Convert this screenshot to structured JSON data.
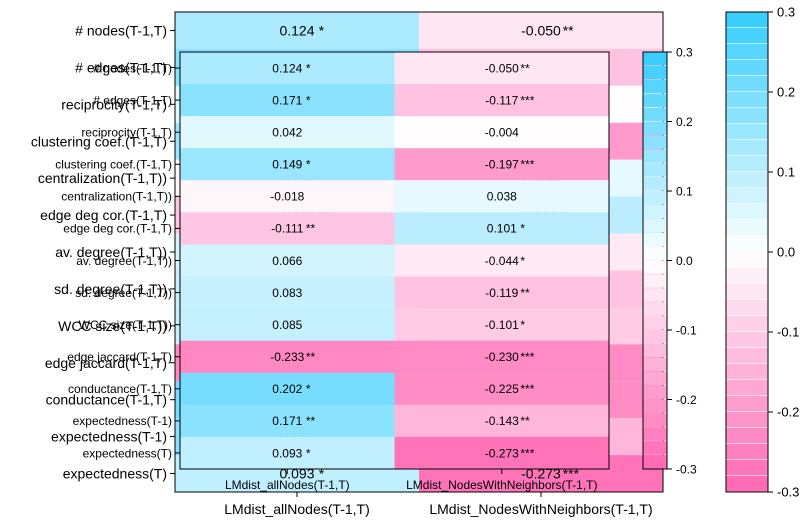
{
  "chart_data": {
    "type": "heatmap",
    "title": "",
    "columns": [
      "LMdist_allNodes(T-1,T)",
      "LMdist_NodesWithNeighbors(T-1,T)"
    ],
    "rows": [
      "# nodes(T-1,T)",
      "# edges(T-1,T)",
      "reciprocity(T-1,T)",
      "clustering coef.(T-1,T)",
      "centralization(T-1,T))",
      "edge deg cor.(T-1,T)",
      "av. degree(T-1,T))",
      "sd. degree(T-1,T))",
      "WCC size(T-1,T))",
      "edge jaccard(T-1,T)",
      "conductance(T-1,T)",
      "expectedness(T-1)",
      "expectedness(T)"
    ],
    "values": [
      [
        0.124,
        -0.05
      ],
      [
        0.171,
        -0.117
      ],
      [
        0.042,
        -0.004
      ],
      [
        0.149,
        -0.197
      ],
      [
        -0.018,
        0.038
      ],
      [
        -0.111,
        0.101
      ],
      [
        0.066,
        -0.044
      ],
      [
        0.083,
        -0.119
      ],
      [
        0.085,
        -0.101
      ],
      [
        -0.233,
        -0.23
      ],
      [
        0.202,
        -0.225
      ],
      [
        0.171,
        -0.143
      ],
      [
        0.093,
        -0.273
      ]
    ],
    "value_labels": [
      [
        "0.124",
        "-0.050"
      ],
      [
        "0.171",
        "-0.117"
      ],
      [
        "0.042",
        "-0.004"
      ],
      [
        "0.149",
        "-0.197"
      ],
      [
        "-0.018",
        "0.038"
      ],
      [
        "-0.111",
        "0.101"
      ],
      [
        "0.066",
        "-0.044"
      ],
      [
        "0.083",
        "-0.119"
      ],
      [
        "0.085",
        "-0.101"
      ],
      [
        "-0.233",
        "-0.230"
      ],
      [
        "0.202",
        "-0.225"
      ],
      [
        "0.171",
        "-0.143"
      ],
      [
        "0.093",
        "-0.273"
      ]
    ],
    "significance": [
      [
        "*",
        "**"
      ],
      [
        "*",
        "***"
      ],
      [
        "",
        ""
      ],
      [
        "*",
        "***"
      ],
      [
        "",
        ""
      ],
      [
        "**",
        "*"
      ],
      [
        "",
        "*"
      ],
      [
        "",
        "**"
      ],
      [
        "",
        "*"
      ],
      [
        "**",
        "***"
      ],
      [
        "*",
        "***"
      ],
      [
        "**",
        "**"
      ],
      [
        "*",
        "***"
      ]
    ],
    "colorbar": {
      "range": [
        -0.3,
        0.3
      ],
      "ticks": [
        -0.3,
        -0.2,
        -0.1,
        0.0,
        0.1,
        0.2,
        0.3
      ],
      "tick_labels": [
        "-0.3",
        "-0.2",
        "-0.1",
        "0.0",
        "0.1",
        "0.2",
        "0.3"
      ],
      "colors": {
        "negative": "#ff66b2",
        "zero": "#ffffff",
        "positive": "#33ccff"
      }
    },
    "grid": false,
    "legend": "right"
  }
}
